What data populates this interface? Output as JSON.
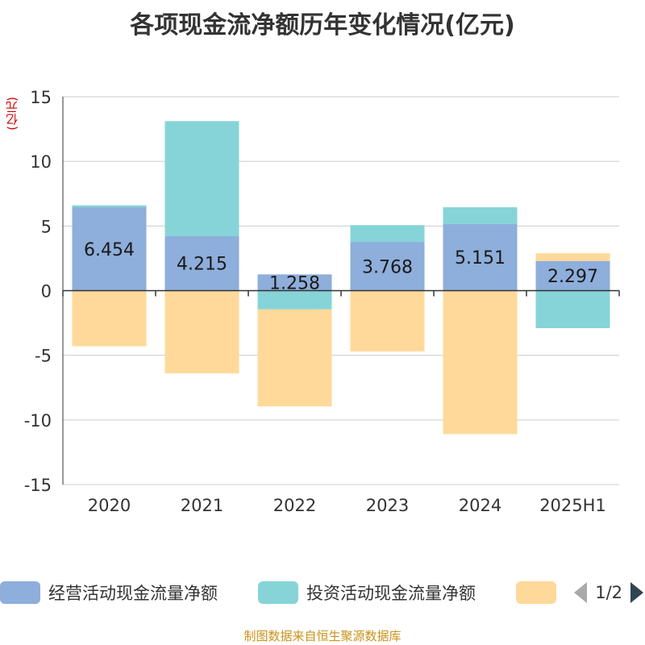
{
  "title": "各项现金流净额历年变化情况(亿元)",
  "unit_label": "(亿元)",
  "source": "制图数据来自恒生聚源数据库",
  "pager": {
    "text": "1/2"
  },
  "colors": {
    "operating": "#8eaedb",
    "investing": "#86d4d8",
    "financing": "#ffd99a",
    "grid": "#cccccc",
    "axis": "#333333"
  },
  "chart_data": {
    "type": "bar",
    "stacked": true,
    "categories": [
      "2020",
      "2021",
      "2022",
      "2023",
      "2024",
      "2025H1"
    ],
    "ylim": [
      -15,
      15
    ],
    "yticks": [
      15,
      10,
      5,
      0,
      -5,
      -10,
      -15
    ],
    "grid": true,
    "legend_position": "bottom",
    "series": [
      {
        "name": "经营活动现金流量净额",
        "color": "#8eaedb",
        "values": [
          6.454,
          4.215,
          1.258,
          3.768,
          5.151,
          2.297
        ],
        "labels": [
          "6.454",
          "4.215",
          "1.258",
          "3.768",
          "5.151",
          "2.297"
        ]
      },
      {
        "name": "投资活动现金流量净额",
        "color": "#86d4d8",
        "values": [
          0.15,
          8.9,
          -1.45,
          1.3,
          1.3,
          -2.9
        ]
      },
      {
        "name": "",
        "color": "#ffd99a",
        "values": [
          -4.3,
          -6.4,
          -7.5,
          -4.7,
          -11.1,
          0.6
        ]
      }
    ]
  }
}
